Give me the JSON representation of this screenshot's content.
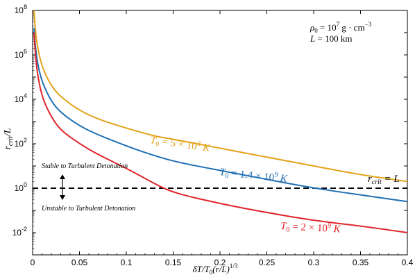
{
  "chart_data": {
    "type": "line",
    "xlabel": {
      "main": "δT/T",
      "sub0": "0",
      "paren": "(r/L)",
      "sup": "1/3"
    },
    "ylabel": {
      "r": "r",
      "sub": "crit",
      "rest": "/L"
    },
    "xlim": [
      0,
      0.4
    ],
    "ylim_log10": [
      -3,
      8
    ],
    "y_scale": "log",
    "x_ticks": [
      {
        "value": 0,
        "label": "0"
      },
      {
        "value": 0.05,
        "label": "0.05"
      },
      {
        "value": 0.1,
        "label": "0.1"
      },
      {
        "value": 0.15,
        "label": "0.15"
      },
      {
        "value": 0.2,
        "label": "0.2"
      },
      {
        "value": 0.25,
        "label": "0.25"
      },
      {
        "value": 0.3,
        "label": "0.3"
      },
      {
        "value": 0.35,
        "label": "0.35"
      },
      {
        "value": 0.4,
        "label": "0.4"
      }
    ],
    "y_ticks": [
      {
        "exp": -2,
        "base": "10",
        "sup": "-2"
      },
      {
        "exp": 0,
        "base": "10",
        "sup": "0"
      },
      {
        "exp": 2,
        "base": "10",
        "sup": "2"
      },
      {
        "exp": 4,
        "base": "10",
        "sup": "4"
      },
      {
        "exp": 6,
        "base": "10",
        "sup": "6"
      },
      {
        "exp": 8,
        "base": "10",
        "sup": "8"
      }
    ],
    "annotations": {
      "params_line1": {
        "lhs": "ρ",
        "sub": "0",
        "eq": " = 10",
        "sup": "7",
        "unit": "  g · cm",
        "unit_sup": "−3"
      },
      "params_line2": {
        "lhs": "L",
        "eq": " = 100",
        "unit": "  km"
      },
      "stable": "Stable to Turbulent Detonation",
      "unstable": "Unstable to Turbulent Detonation",
      "rcrit_eq": {
        "r": "r",
        "sub": "crit",
        "rest": " = L"
      }
    },
    "reference_line": {
      "y": 1,
      "style": "dashed",
      "color": "#000000"
    },
    "series": [
      {
        "label": {
          "t": "T",
          "sub": "0",
          "eq": " = 5 × 10",
          "sup": "8",
          "unit": " K"
        },
        "color": "#e3a21a",
        "points": [
          [
            0.0015,
            100000000.0
          ],
          [
            0.003,
            12000000.0
          ],
          [
            0.005,
            2600000.0
          ],
          [
            0.008,
            630000.0
          ],
          [
            0.012,
            190000.0
          ],
          [
            0.02,
            40000.0
          ],
          [
            0.03,
            12600.0
          ],
          [
            0.05,
            3160.0
          ],
          [
            0.07,
            1260.0
          ],
          [
            0.1,
            500.0
          ],
          [
            0.13,
            220.0
          ],
          [
            0.15,
            160.0
          ],
          [
            0.2,
            63
          ],
          [
            0.25,
            25
          ],
          [
            0.3,
            10
          ],
          [
            0.35,
            4.0
          ],
          [
            0.4,
            2.0
          ]
        ]
      },
      {
        "label": {
          "t": "T",
          "sub": "0",
          "eq": " = 1.4 × 10",
          "sup": "9",
          "unit": " K"
        },
        "color": "#1f6fb4",
        "points": [
          [
            0.0015,
            16000000.0
          ],
          [
            0.003,
            2200000.0
          ],
          [
            0.005,
            500000.0
          ],
          [
            0.008,
            126000.0
          ],
          [
            0.012,
            40000.0
          ],
          [
            0.02,
            8000.0
          ],
          [
            0.03,
            2500.0
          ],
          [
            0.05,
            630.0
          ],
          [
            0.07,
            250.0
          ],
          [
            0.1,
            80
          ],
          [
            0.12,
            40
          ],
          [
            0.15,
            16
          ],
          [
            0.2,
            6.3
          ],
          [
            0.25,
            2.5
          ],
          [
            0.3,
            1.0
          ],
          [
            0.35,
            0.5
          ],
          [
            0.4,
            0.25
          ]
        ]
      },
      {
        "label": {
          "t": "T",
          "sub": "0",
          "eq": " = 2 × 10",
          "sup": "9",
          "unit": " K"
        },
        "color": "#e0232b",
        "points": [
          [
            0.0015,
            10000000.0
          ],
          [
            0.003,
            1000000.0
          ],
          [
            0.005,
            160000.0
          ],
          [
            0.008,
            32000.0
          ],
          [
            0.012,
            8000.0
          ],
          [
            0.02,
            1600.0
          ],
          [
            0.03,
            400.0
          ],
          [
            0.05,
            100.0
          ],
          [
            0.07,
            32
          ],
          [
            0.1,
            8
          ],
          [
            0.13,
            1.6
          ],
          [
            0.15,
            0.63
          ],
          [
            0.2,
            0.2
          ],
          [
            0.25,
            0.08
          ],
          [
            0.3,
            0.035
          ],
          [
            0.35,
            0.02
          ],
          [
            0.4,
            0.01
          ]
        ]
      }
    ]
  }
}
